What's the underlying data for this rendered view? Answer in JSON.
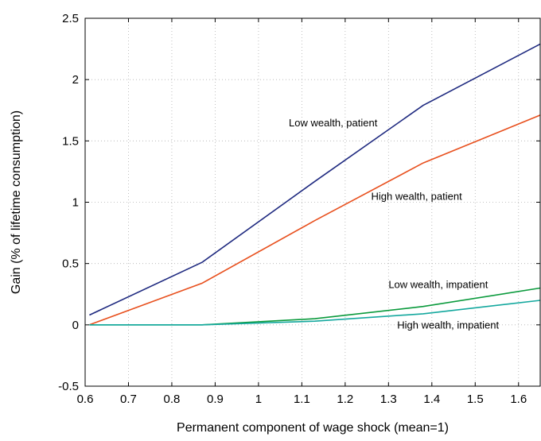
{
  "chart_data": {
    "type": "line",
    "title": "",
    "xlabel": "Permanent component of wage shock (mean=1)",
    "ylabel": "Gain (% of lifetime consumption)",
    "xlim": [
      0.6,
      1.65
    ],
    "ylim": [
      -0.5,
      2.5
    ],
    "xticks": [
      0.6,
      0.7,
      0.8,
      0.9,
      1,
      1.1,
      1.2,
      1.3,
      1.4,
      1.5,
      1.6
    ],
    "xtick_labels": [
      "0.6",
      "0.7",
      "0.8",
      "0.9",
      "1",
      "1.1",
      "1.2",
      "1.3",
      "1.4",
      "1.5",
      "1.6"
    ],
    "yticks": [
      -0.5,
      0,
      0.5,
      1,
      1.5,
      2,
      2.5
    ],
    "ytick_labels": [
      "-0.5",
      "0",
      "0.5",
      "1",
      "1.5",
      "2",
      "2.5"
    ],
    "grid": true,
    "series": [
      {
        "name": "Low wealth, patient",
        "color": "#1f2a80",
        "x": [
          0.61,
          0.87,
          1.13,
          1.38,
          1.65
        ],
        "y": [
          0.08,
          0.51,
          1.17,
          1.79,
          2.29
        ]
      },
      {
        "name": "High wealth, patient",
        "color": "#e8501e",
        "x": [
          0.61,
          0.87,
          1.13,
          1.38,
          1.65
        ],
        "y": [
          0.0,
          0.34,
          0.85,
          1.32,
          1.71
        ]
      },
      {
        "name": "Low wealth, impatient",
        "color": "#0a9a3c",
        "x": [
          0.61,
          0.87,
          1.13,
          1.38,
          1.65
        ],
        "y": [
          0.0,
          0.0,
          0.05,
          0.15,
          0.3
        ]
      },
      {
        "name": "High wealth, impatient",
        "color": "#14a89e",
        "x": [
          0.61,
          0.87,
          1.13,
          1.38,
          1.65
        ],
        "y": [
          0.0,
          0.0,
          0.03,
          0.09,
          0.2
        ]
      }
    ],
    "annotations": [
      {
        "text": "Low wealth, patient",
        "x": 1.07,
        "y": 1.62
      },
      {
        "text": "High wealth, patient",
        "x": 1.26,
        "y": 1.02
      },
      {
        "text": "Low wealth, impatient",
        "x": 1.3,
        "y": 0.3
      },
      {
        "text": "High wealth, impatient",
        "x": 1.32,
        "y": -0.03
      }
    ]
  }
}
